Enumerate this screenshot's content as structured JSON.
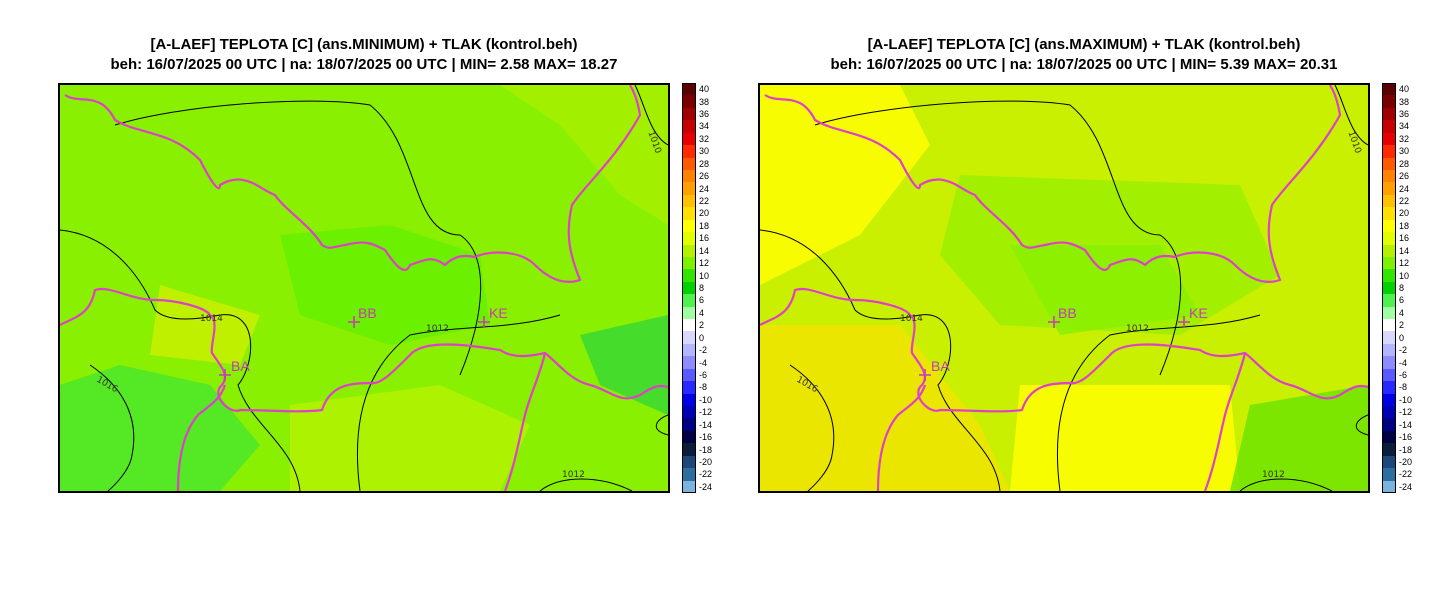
{
  "panels": [
    {
      "title_line1": "[A-LAEF] TEPLOTA [C] (ans.MINIMUM) + TLAK (kontrol.beh)",
      "title_line2": "beh: 16/07/2025 00 UTC | na: 18/07/2025 00 UTC | MIN= 2.58 MAX= 18.27",
      "base_color": "#88f000",
      "patches": [
        {
          "color": "#a8ee00"
        },
        {
          "color": "#4ce62a"
        },
        {
          "color": "#66f000"
        },
        {
          "color": "#b4f200"
        },
        {
          "color": "#c8f000"
        },
        {
          "color": "#3ad832"
        }
      ]
    },
    {
      "title_line1": "[A-LAEF] TEPLOTA [C] (ans.MAXIMUM) + TLAK (kontrol.beh)",
      "title_line2": "beh: 16/07/2025 00 UTC | na: 18/07/2025 00 UTC | MIN= 5.39 MAX= 20.31",
      "base_color": "#c8f000",
      "patches": [
        {
          "color": "#ffff00"
        },
        {
          "color": "#9cee00"
        },
        {
          "color": "#88f000"
        },
        {
          "color": "#f0e400"
        },
        {
          "color": "#ffff00"
        },
        {
          "color": "#6ee400"
        }
      ]
    }
  ],
  "cities": [
    {
      "label": "BB"
    },
    {
      "label": "KE"
    },
    {
      "label": "BA"
    }
  ],
  "isobar_labels": [
    "1010",
    "1014",
    "1012",
    "1016",
    "1012"
  ],
  "colorbar": {
    "levels": [
      "40",
      "38",
      "36",
      "34",
      "32",
      "30",
      "28",
      "26",
      "24",
      "22",
      "20",
      "18",
      "16",
      "14",
      "12",
      "10",
      "8",
      "6",
      "4",
      "2",
      "0",
      "-2",
      "-4",
      "-6",
      "-8",
      "-10",
      "-12",
      "-14",
      "-16",
      "-18",
      "-20",
      "-22",
      "-24"
    ],
    "colors": [
      "#5a0000",
      "#7a0000",
      "#a00000",
      "#c80000",
      "#e60000",
      "#ff2a00",
      "#ff5a00",
      "#ff8200",
      "#ffa000",
      "#ffc000",
      "#ffe000",
      "#ffff00",
      "#e0ff00",
      "#b4f000",
      "#80f000",
      "#32e600",
      "#00d200",
      "#50f050",
      "#a0ffa0",
      "#ffffff",
      "#d8d8ff",
      "#b4b4ff",
      "#8c8cff",
      "#5a5aff",
      "#2828ff",
      "#0000e6",
      "#0000b4",
      "#000082",
      "#000046",
      "#0a1e3c",
      "#1e4678",
      "#2d6ea0",
      "#78b4dc"
    ]
  },
  "colors": {
    "border": "#e040c8",
    "isobar": "#000000",
    "city": "#c83cb4"
  }
}
